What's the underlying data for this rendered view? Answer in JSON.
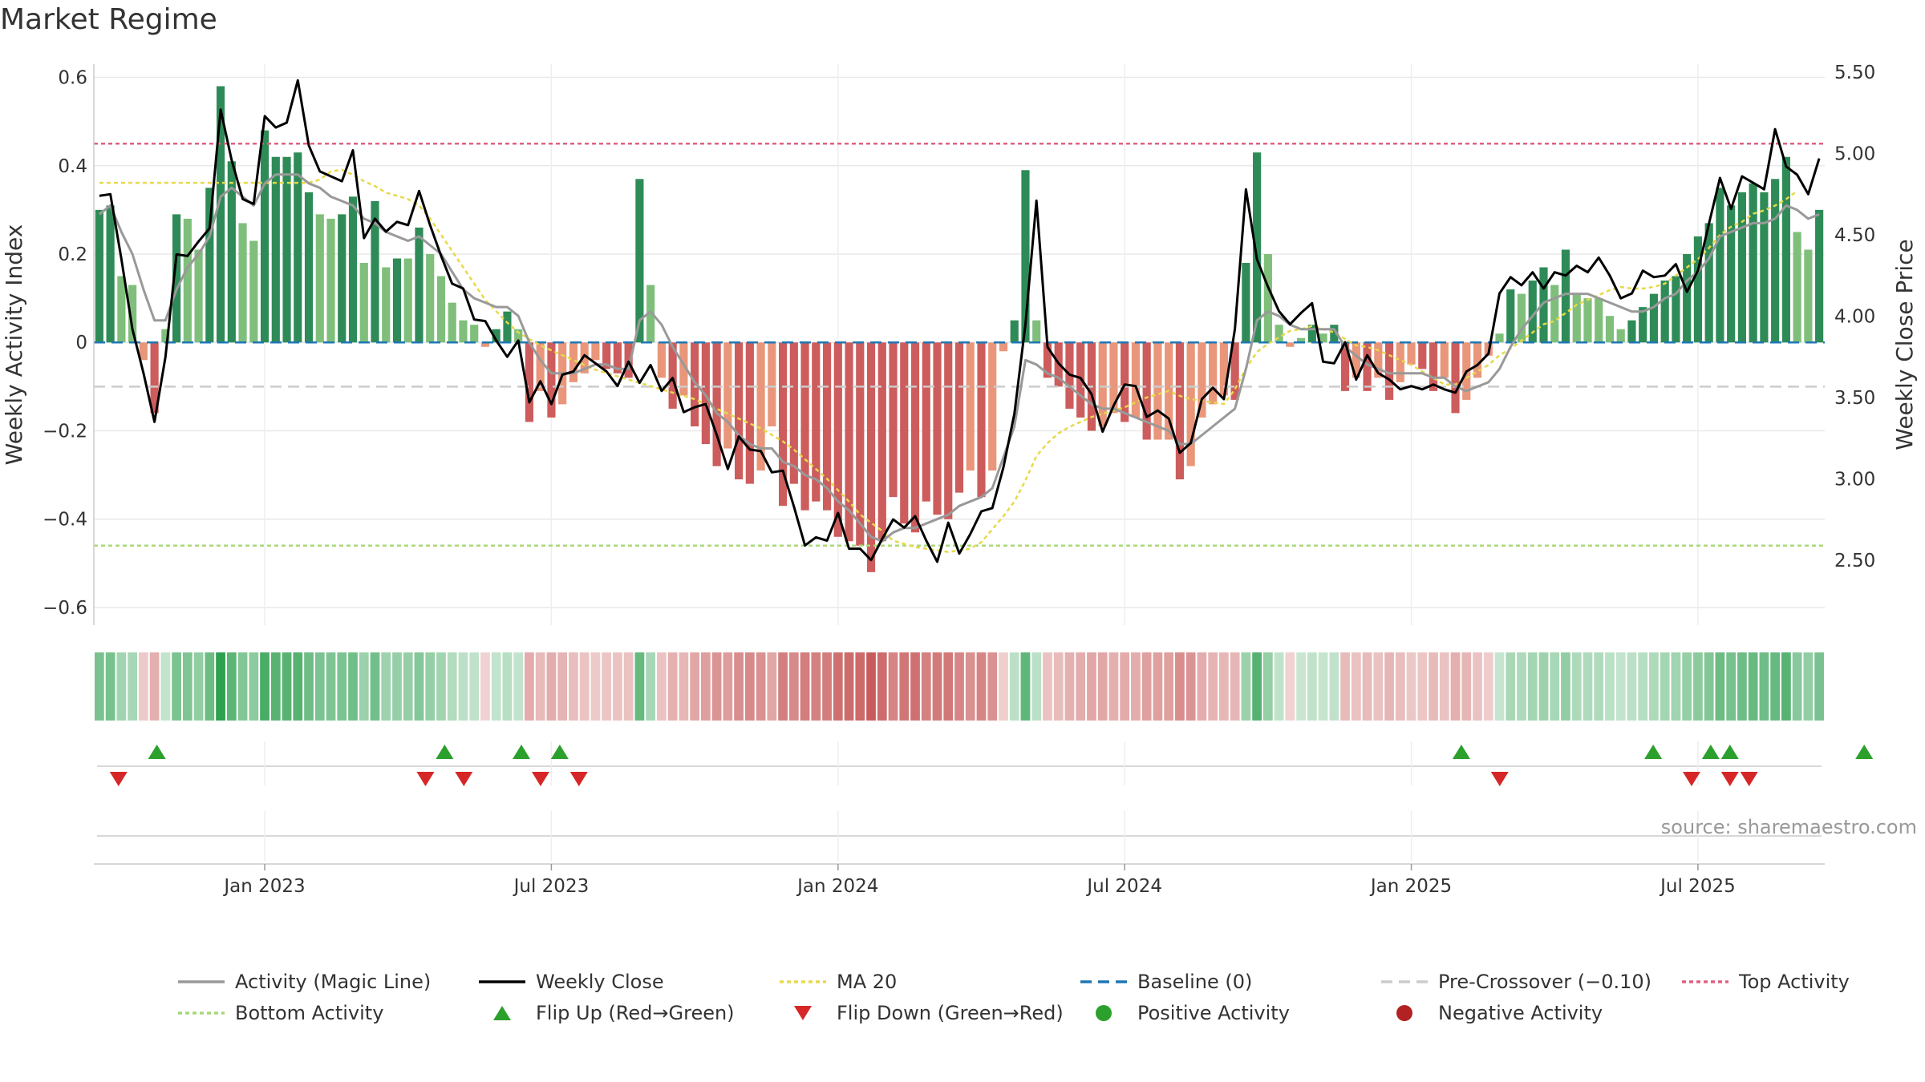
{
  "title": "Market Regime",
  "source_note": "source: sharemaestro.com",
  "colors": {
    "strong_green": "#2e8b57",
    "light_green": "#7fbf7b",
    "strong_red": "#cd5c5c",
    "light_red": "#e9967a",
    "activity_line": "#999999",
    "close_line": "#000000",
    "ma20": "#f0e040",
    "baseline": "#1f77b4",
    "precross": "#cccccc",
    "top": "#e06080",
    "bottom": "#a8d878",
    "flip_up": "#2ca02c",
    "flip_down": "#d62728",
    "pos_dot": "#2ca02c",
    "neg_dot": "#b22222"
  },
  "legend": [
    {
      "label": "Activity (Magic Line)",
      "kind": "line",
      "color": "#999999",
      "dash": ""
    },
    {
      "label": "Weekly Close",
      "kind": "line",
      "color": "#000000",
      "dash": ""
    },
    {
      "label": "MA 20",
      "kind": "line",
      "color": "#e8d84a",
      "dash": "5,4"
    },
    {
      "label": "Baseline (0)",
      "kind": "line",
      "color": "#1f77b4",
      "dash": "14,8"
    },
    {
      "label": "Pre-Crossover (−0.10)",
      "kind": "line",
      "color": "#cccccc",
      "dash": "14,8"
    },
    {
      "label": "Top Activity",
      "kind": "line",
      "color": "#e06080",
      "dash": "5,4"
    },
    {
      "label": "Bottom Activity",
      "kind": "line",
      "color": "#a8d878",
      "dash": "5,4"
    },
    {
      "label": "Flip Up (Red→Green)",
      "kind": "tri-up",
      "color": "#2ca02c"
    },
    {
      "label": "Flip Down (Green→Red)",
      "kind": "tri-down",
      "color": "#d62728"
    },
    {
      "label": "Positive Activity",
      "kind": "dot",
      "color": "#2ca02c"
    },
    {
      "label": "Negative Activity",
      "kind": "dot",
      "color": "#b22222"
    }
  ],
  "chart_data": {
    "type": "bar",
    "title": "Market Regime",
    "ylabel_left": "Weekly Activity Index",
    "ylabel_right": "Weekly Close Price",
    "ylim_left": [
      -0.64,
      0.63
    ],
    "ylim_right": [
      2.1,
      5.55
    ],
    "yticks_left": [
      0.6,
      0.4,
      0.2,
      0,
      -0.2,
      -0.4,
      -0.6
    ],
    "yticks_left_labels": [
      "0.6",
      "0.4",
      "0.2",
      "0",
      "−0.2",
      "−0.4",
      "−0.6"
    ],
    "yticks_right": [
      5.5,
      5.0,
      4.5,
      4.0,
      3.5,
      3.0,
      2.5
    ],
    "yticks_right_labels": [
      "5.50",
      "5.00",
      "4.50",
      "4.00",
      "3.50",
      "3.00",
      "2.50"
    ],
    "x_tick_labels": [
      "Jan 2023",
      "Jul 2023",
      "Jan 2024",
      "Jul 2024",
      "Jan 2025",
      "Jul 2025"
    ],
    "x_tick_weeks": [
      15,
      41,
      67,
      93,
      119,
      145
    ],
    "reference_lines": {
      "top_activity": 0.45,
      "bottom_activity": -0.46,
      "pre_crossover": -0.1,
      "baseline": 0
    },
    "activity_bars": [
      0.3,
      0.31,
      0.15,
      0.13,
      -0.04,
      -0.16,
      0.03,
      0.29,
      0.28,
      0.21,
      0.35,
      0.58,
      0.41,
      0.27,
      0.23,
      0.48,
      0.42,
      0.42,
      0.43,
      0.34,
      0.29,
      0.28,
      0.29,
      0.33,
      0.18,
      0.32,
      0.17,
      0.19,
      0.19,
      0.26,
      0.2,
      0.15,
      0.09,
      0.05,
      0.04,
      -0.01,
      0.03,
      0.07,
      0.03,
      -0.18,
      -0.11,
      -0.17,
      -0.14,
      -0.09,
      -0.07,
      -0.04,
      -0.06,
      -0.07,
      -0.08,
      0.37,
      0.13,
      -0.08,
      -0.15,
      -0.12,
      -0.19,
      -0.23,
      -0.28,
      -0.24,
      -0.31,
      -0.32,
      -0.29,
      -0.19,
      -0.37,
      -0.32,
      -0.38,
      -0.36,
      -0.38,
      -0.44,
      -0.45,
      -0.46,
      -0.52,
      -0.45,
      -0.35,
      -0.41,
      -0.43,
      -0.36,
      -0.39,
      -0.4,
      -0.34,
      -0.29,
      -0.35,
      -0.29,
      -0.02,
      0.05,
      0.39,
      0.05,
      -0.08,
      -0.1,
      -0.15,
      -0.17,
      -0.2,
      -0.19,
      -0.16,
      -0.18,
      -0.17,
      -0.22,
      -0.22,
      -0.22,
      -0.31,
      -0.28,
      -0.17,
      -0.14,
      -0.12,
      -0.13,
      0.18,
      0.43,
      0.2,
      0.04,
      -0.01,
      0.01,
      0.04,
      0.02,
      0.04,
      -0.11,
      -0.08,
      -0.11,
      -0.08,
      -0.13,
      -0.09,
      -0.05,
      -0.06,
      -0.11,
      -0.08,
      -0.16,
      -0.13,
      -0.08,
      -0.03,
      0.02,
      0.12,
      0.11,
      0.14,
      0.17,
      0.13,
      0.21,
      0.11,
      0.1,
      0.1,
      0.06,
      0.03,
      0.05,
      0.08,
      0.11,
      0.14,
      0.15,
      0.2,
      0.24,
      0.27,
      0.35,
      0.31,
      0.34,
      0.36,
      0.34,
      0.37,
      0.42,
      0.25,
      0.21,
      0.3
    ],
    "activity_line": [
      0.29,
      0.31,
      0.25,
      0.2,
      0.12,
      0.05,
      0.05,
      0.12,
      0.17,
      0.2,
      0.24,
      0.33,
      0.35,
      0.33,
      0.31,
      0.36,
      0.38,
      0.38,
      0.38,
      0.36,
      0.35,
      0.33,
      0.32,
      0.31,
      0.28,
      0.27,
      0.25,
      0.24,
      0.23,
      0.24,
      0.22,
      0.2,
      0.16,
      0.12,
      0.1,
      0.09,
      0.08,
      0.08,
      0.06,
      0,
      -0.04,
      -0.07,
      -0.07,
      -0.07,
      -0.06,
      -0.05,
      -0.05,
      -0.06,
      -0.06,
      0.05,
      0.07,
      0.04,
      -0.01,
      -0.05,
      -0.09,
      -0.12,
      -0.16,
      -0.18,
      -0.21,
      -0.23,
      -0.24,
      -0.24,
      -0.27,
      -0.28,
      -0.3,
      -0.31,
      -0.33,
      -0.36,
      -0.38,
      -0.41,
      -0.44,
      -0.45,
      -0.43,
      -0.42,
      -0.42,
      -0.41,
      -0.4,
      -0.39,
      -0.37,
      -0.36,
      -0.35,
      -0.33,
      -0.26,
      -0.19,
      -0.04,
      -0.05,
      -0.07,
      -0.08,
      -0.1,
      -0.12,
      -0.14,
      -0.15,
      -0.15,
      -0.16,
      -0.17,
      -0.18,
      -0.19,
      -0.2,
      -0.23,
      -0.23,
      -0.21,
      -0.19,
      -0.17,
      -0.15,
      -0.06,
      0.05,
      0.07,
      0.06,
      0.04,
      0.03,
      0.03,
      0.03,
      0.03,
      -0.01,
      -0.03,
      -0.05,
      -0.06,
      -0.07,
      -0.07,
      -0.07,
      -0.07,
      -0.08,
      -0.08,
      -0.1,
      -0.11,
      -0.1,
      -0.09,
      -0.06,
      -0.01,
      0.03,
      0.06,
      0.09,
      0.1,
      0.11,
      0.11,
      0.11,
      0.1,
      0.09,
      0.08,
      0.07,
      0.07,
      0.08,
      0.1,
      0.11,
      0.14,
      0.16,
      0.19,
      0.24,
      0.25,
      0.26,
      0.27,
      0.27,
      0.28,
      0.31,
      0.3,
      0.28,
      0.29
    ],
    "weekly_close": [
      4.74,
      4.75,
      4.35,
      3.92,
      3.65,
      3.35,
      3.75,
      4.38,
      4.37,
      4.46,
      4.54,
      5.27,
      4.96,
      4.72,
      4.69,
      5.23,
      5.16,
      5.19,
      5.45,
      5.05,
      4.89,
      4.86,
      4.83,
      5.02,
      4.48,
      4.6,
      4.52,
      4.58,
      4.56,
      4.77,
      4.56,
      4.37,
      4.2,
      4.17,
      3.98,
      3.97,
      3.85,
      3.75,
      3.85,
      3.47,
      3.6,
      3.46,
      3.64,
      3.66,
      3.76,
      3.71,
      3.66,
      3.57,
      3.72,
      3.59,
      3.7,
      3.54,
      3.62,
      3.41,
      3.44,
      3.46,
      3.27,
      3.06,
      3.26,
      3.18,
      3.17,
      3.04,
      3.05,
      2.83,
      2.59,
      2.64,
      2.62,
      2.79,
      2.57,
      2.57,
      2.5,
      2.63,
      2.75,
      2.7,
      2.77,
      2.62,
      2.49,
      2.73,
      2.54,
      2.66,
      2.8,
      2.82,
      3.07,
      3.4,
      3.95,
      4.71,
      3.81,
      3.71,
      3.64,
      3.62,
      3.52,
      3.29,
      3.45,
      3.58,
      3.57,
      3.38,
      3.42,
      3.37,
      3.16,
      3.22,
      3.49,
      3.56,
      3.49,
      3.92,
      4.78,
      4.35,
      4.18,
      4.03,
      3.95,
      4.02,
      4.08,
      3.72,
      3.71,
      3.84,
      3.61,
      3.76,
      3.65,
      3.61,
      3.55,
      3.57,
      3.55,
      3.58,
      3.55,
      3.53,
      3.66,
      3.7,
      3.77,
      4.14,
      4.24,
      4.19,
      4.27,
      4.17,
      4.27,
      4.25,
      4.31,
      4.27,
      4.36,
      4.25,
      4.11,
      4.14,
      4.28,
      4.24,
      4.25,
      4.32,
      4.15,
      4.28,
      4.57,
      4.85,
      4.66,
      4.86,
      4.82,
      4.78,
      5.15,
      4.92,
      4.87,
      4.75,
      4.97
    ],
    "ma20": [
      4.82,
      4.82,
      4.82,
      4.82,
      4.82,
      4.82,
      4.82,
      4.82,
      4.82,
      4.82,
      4.82,
      4.82,
      4.82,
      4.82,
      4.82,
      4.82,
      4.82,
      4.82,
      4.82,
      4.82,
      4.84,
      4.89,
      4.9,
      4.87,
      4.83,
      4.8,
      4.76,
      4.74,
      4.72,
      4.68,
      4.6,
      4.5,
      4.4,
      4.3,
      4.2,
      4.1,
      4.03,
      3.96,
      3.9,
      3.86,
      3.82,
      3.79,
      3.76,
      3.73,
      3.7,
      3.67,
      3.65,
      3.63,
      3.61,
      3.59,
      3.57,
      3.55,
      3.53,
      3.51,
      3.49,
      3.46,
      3.43,
      3.4,
      3.37,
      3.34,
      3.31,
      3.27,
      3.23,
      3.18,
      3.12,
      3.06,
      3,
      2.93,
      2.86,
      2.78,
      2.73,
      2.68,
      2.62,
      2.6,
      2.58,
      2.57,
      2.56,
      2.55,
      2.56,
      2.57,
      2.61,
      2.69,
      2.77,
      2.86,
      2.99,
      3.14,
      3.22,
      3.28,
      3.32,
      3.35,
      3.38,
      3.4,
      3.42,
      3.44,
      3.47,
      3.5,
      3.52,
      3.54,
      3.51,
      3.49,
      3.48,
      3.47,
      3.46,
      3.55,
      3.68,
      3.78,
      3.83,
      3.87,
      3.91,
      3.92,
      3.94,
      3.92,
      3.9,
      3.86,
      3.82,
      3.81,
      3.79,
      3.76,
      3.73,
      3.7,
      3.66,
      3.62,
      3.58,
      3.58,
      3.62,
      3.66,
      3.7,
      3.76,
      3.8,
      3.85,
      3.9,
      3.95,
      3.97,
      4.02,
      4.07,
      4.1,
      4.13,
      4.16,
      4.18,
      4.17,
      4.17,
      4.18,
      4.2,
      4.25,
      4.3,
      4.35,
      4.42,
      4.5,
      4.55,
      4.58,
      4.63,
      4.65,
      4.68,
      4.72,
      4.77
    ],
    "flip_up_weeks": [
      3,
      18,
      22,
      24,
      71,
      81,
      84,
      85,
      92
    ],
    "flip_down_weeks": [
      1,
      17,
      19,
      23,
      25,
      73,
      83,
      85,
      86
    ]
  }
}
